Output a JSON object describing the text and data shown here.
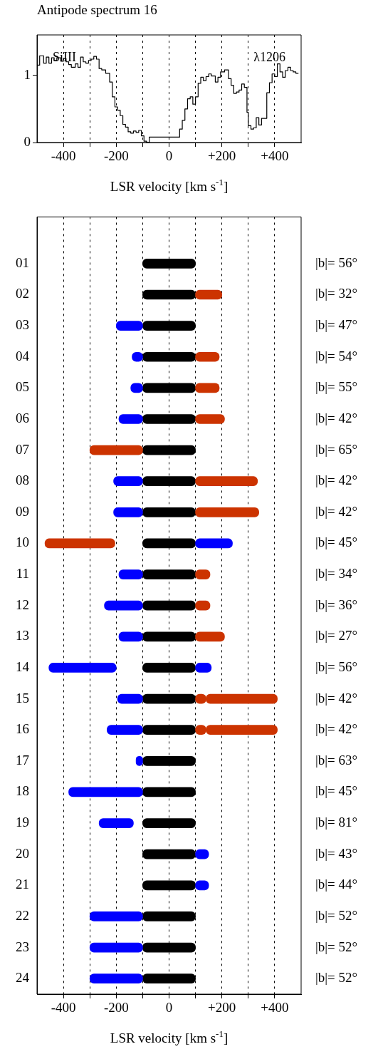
{
  "chart_data": [
    {
      "type": "step",
      "title": "Antipode spectrum 16",
      "xlabel": "LSR velocity [km s$^{-1}$]",
      "annotations": [
        "SiIII",
        "λ1206"
      ],
      "xlim": [
        -500,
        500
      ],
      "ylim": [
        0,
        1.6
      ],
      "xticks": [
        {
          "value": -400,
          "label": "-400"
        },
        {
          "value": -300,
          "label": null
        },
        {
          "value": -200,
          "label": "-200"
        },
        {
          "value": -100,
          "label": null
        },
        0,
        {
          "value": 100,
          "label": null
        },
        {
          "value": 200,
          "label": "+200"
        },
        {
          "value": 300,
          "label": null
        },
        {
          "value": 400,
          "label": "+400"
        }
      ],
      "yticks": [
        0,
        1
      ],
      "grid": "x",
      "series": [
        {
          "color": "#000000",
          "x": [
            -500,
            -490,
            -475,
            -465,
            -455,
            -445,
            -435,
            -425,
            -410,
            -400,
            -390,
            -380,
            -370,
            -355,
            -345,
            -335,
            -325,
            -315,
            -305,
            -295,
            -285,
            -275,
            -265,
            -255,
            -240,
            -225,
            -215,
            -205,
            -195,
            -185,
            -175,
            -165,
            -155,
            -145,
            -135,
            -125,
            -115,
            -105,
            -95,
            -85,
            -75,
            40,
            50,
            60,
            70,
            80,
            90,
            100,
            110,
            120,
            130,
            140,
            150,
            160,
            175,
            185,
            195,
            210,
            225,
            235,
            245,
            255,
            265,
            275,
            285,
            295,
            300,
            310,
            320,
            330,
            340,
            350,
            360,
            370,
            380,
            390,
            400,
            410,
            420,
            430,
            440,
            450,
            460,
            470,
            480,
            490
          ],
          "values": [
            1.3,
            1.15,
            1.29,
            1.18,
            1.27,
            1.18,
            1.26,
            1.22,
            1.26,
            1.21,
            1.25,
            1.2,
            1.16,
            1.12,
            1.17,
            1.12,
            1.27,
            1.2,
            1.18,
            1.22,
            1.24,
            1.28,
            1.24,
            1.1,
            1.08,
            1.03,
            0.9,
            0.68,
            0.53,
            0.48,
            0.4,
            0.27,
            0.23,
            0.16,
            0.14,
            0.17,
            0.15,
            0.18,
            0.1,
            0.02,
            0.0,
            0.08,
            0.2,
            0.33,
            0.5,
            0.65,
            0.68,
            0.57,
            0.68,
            0.88,
            0.97,
            0.92,
            0.98,
            1.02,
            0.99,
            0.9,
            0.97,
            1.05,
            1.08,
            0.95,
            0.85,
            0.73,
            0.75,
            0.78,
            0.87,
            0.82,
            0.45,
            0.25,
            0.2,
            0.22,
            0.37,
            0.26,
            0.36,
            0.36,
            0.74,
            0.89,
            1.02,
            0.98,
            1.17,
            1.05,
            0.97,
            1.07,
            1.12,
            1.07,
            1.05,
            1.03
          ]
        }
      ]
    },
    {
      "type": "bar",
      "orientation": "horizontal",
      "xlabel": "LSR velocity [km s$^{-1}$]",
      "categories": [
        null,
        "01",
        "02",
        "03",
        "04",
        "05",
        "06",
        "07",
        "08",
        "09",
        "10",
        "11",
        "12",
        "13",
        "14",
        "15",
        "16",
        "17",
        "18",
        "19",
        "20",
        "21",
        "22",
        "23",
        "24"
      ],
      "xlim": [
        -500,
        500
      ],
      "xticks": [
        {
          "value": -400,
          "label": "-400"
        },
        {
          "value": -300,
          "label": null
        },
        {
          "value": -200,
          "label": "-200"
        },
        {
          "value": -100,
          "label": null
        },
        0,
        {
          "value": 100,
          "label": null
        },
        {
          "value": 200,
          "label": "+200"
        },
        {
          "value": 300,
          "label": null
        },
        {
          "value": 400,
          "label": "+400"
        }
      ],
      "grid": "x",
      "series": [
        {
          "base": [
            null,
            null,
            null,
            -200,
            -140,
            -145,
            -190,
            -300,
            -210,
            -210,
            -470,
            -190,
            -245,
            -190,
            -455,
            -195,
            -235,
            -125,
            -380,
            -265,
            null,
            null,
            -300,
            -300,
            -300
          ],
          "values": [
            null,
            null,
            null,
            100,
            40,
            45,
            90,
            200,
            110,
            110,
            265,
            90,
            145,
            90,
            255,
            95,
            135,
            25,
            280,
            130,
            null,
            null,
            200,
            200,
            200
          ],
          "colors": [
            null,
            null,
            null,
            "#0000ff",
            "#0000ff",
            "#0000ff",
            "#0000ff",
            "#cc3300",
            "#0000ff",
            "#0000ff",
            "#cc3300",
            "#0000ff",
            "#0000ff",
            "#0000ff",
            "#0000ff",
            "#0000ff",
            "#0000ff",
            "#0000ff",
            "#0000ff",
            "#0000ff",
            null,
            null,
            "#0000ff",
            "#0000ff",
            "#0000ff"
          ]
        },
        {
          "base": [
            null,
            null,
            100,
            null,
            100,
            100,
            100,
            null,
            100,
            100,
            100,
            100,
            100,
            100,
            100,
            100,
            100,
            null,
            null,
            null,
            100,
            100,
            null,
            null,
            null
          ],
          "values": [
            null,
            null,
            100,
            null,
            90,
            90,
            110,
            null,
            235,
            240,
            140,
            55,
            55,
            110,
            60,
            40,
            40,
            null,
            null,
            null,
            50,
            50,
            null,
            null,
            null
          ],
          "colors": [
            null,
            null,
            "#cc3300",
            null,
            "#cc3300",
            "#cc3300",
            "#cc3300",
            null,
            "#cc3300",
            "#cc3300",
            "#0000ff",
            "#cc3300",
            "#cc3300",
            "#cc3300",
            "#0000ff",
            "#cc3300",
            "#cc3300",
            null,
            null,
            null,
            "#0000ff",
            "#0000ff",
            null,
            null,
            null
          ]
        },
        {
          "base": [
            null,
            null,
            null,
            null,
            null,
            null,
            null,
            null,
            null,
            null,
            null,
            null,
            null,
            null,
            null,
            140,
            140,
            null,
            null,
            null,
            null,
            null,
            null,
            null,
            null
          ],
          "values": [
            null,
            null,
            null,
            null,
            null,
            null,
            null,
            null,
            null,
            null,
            null,
            null,
            null,
            null,
            null,
            270,
            270,
            null,
            null,
            null,
            null,
            null,
            null,
            null,
            null
          ],
          "colors": [
            null,
            null,
            null,
            null,
            null,
            null,
            null,
            null,
            null,
            null,
            null,
            null,
            null,
            null,
            null,
            "#cc3300",
            "#cc3300",
            null,
            null,
            null,
            null,
            null,
            null,
            null,
            null
          ]
        },
        {
          "color": "#000000",
          "base": [
            null,
            -100,
            -100,
            -100,
            -100,
            -100,
            -100,
            -100,
            -100,
            -100,
            -100,
            -100,
            -100,
            -100,
            -100,
            -100,
            -100,
            -100,
            -100,
            -100,
            -100,
            -100,
            -100,
            -100,
            -100
          ],
          "values": [
            null,
            200,
            200,
            200,
            200,
            200,
            200,
            200,
            200,
            200,
            200,
            200,
            200,
            200,
            200,
            200,
            200,
            200,
            200,
            200,
            200,
            200,
            200,
            200,
            200
          ]
        }
      ],
      "annotations": [
        "|b|= 56°",
        "|b|= 32°",
        "|b|= 47°",
        "|b|= 54°",
        "|b|= 55°",
        "|b|= 42°",
        "|b|= 65°",
        "|b|= 42°",
        "|b|= 42°",
        "|b|= 45°",
        "|b|= 34°",
        "|b|= 36°",
        "|b|= 27°",
        "|b|= 56°",
        "|b|= 42°",
        "|b|= 42°",
        "|b|= 63°",
        "|b|= 45°",
        "|b|= 81°",
        "|b|= 43°",
        "|b|= 44°",
        "|b|= 52°",
        "|b|= 52°",
        "|b|= 52°"
      ]
    }
  ]
}
